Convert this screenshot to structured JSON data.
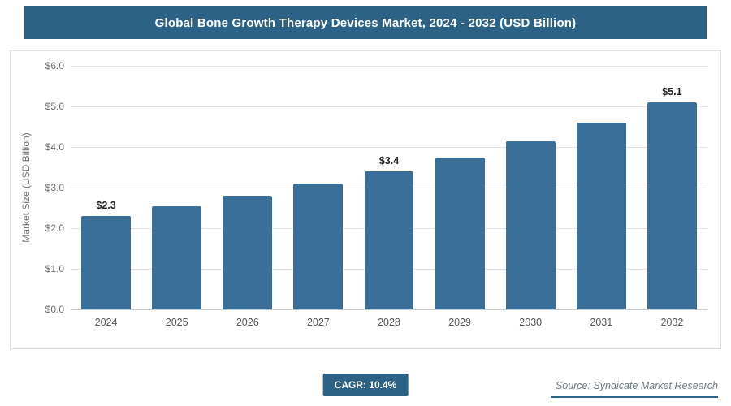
{
  "header": {
    "title": "Global Bone Growth Therapy Devices Market, 2024 - 2032 (USD Billion)"
  },
  "footer": {
    "cagr_label": "CAGR: 10.4%",
    "source": "Source: Syndicate Market Research"
  },
  "colors": {
    "header_bg": "#2c6285",
    "bar": "#3a6f99",
    "badge_bg": "#2c6285",
    "grid": "#e4e4e4"
  },
  "chart_data": {
    "type": "bar",
    "title": "Global Bone Growth Therapy Devices Market, 2024 - 2032 (USD Billion)",
    "categories": [
      "2024",
      "2025",
      "2026",
      "2027",
      "2028",
      "2029",
      "2030",
      "2031",
      "2032"
    ],
    "values": [
      2.3,
      2.55,
      2.8,
      3.1,
      3.4,
      3.75,
      4.15,
      4.6,
      5.1
    ],
    "value_labels": [
      "$2.3",
      "",
      "",
      "",
      "$3.4",
      "",
      "",
      "",
      "$5.1"
    ],
    "xlabel": "",
    "ylabel": "Market Size (USD Billion)",
    "ylim": [
      0,
      6
    ],
    "y_ticks": [
      "$0.0",
      "$1.0",
      "$2.0",
      "$3.0",
      "$4.0",
      "$5.0",
      "$6.0"
    ],
    "grid": true,
    "legend": false
  }
}
